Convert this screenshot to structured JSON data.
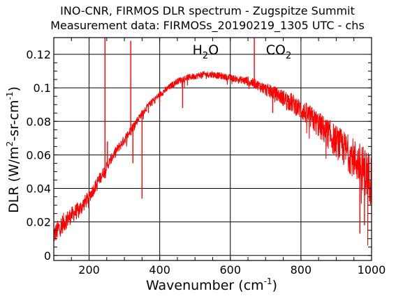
{
  "chart_data": {
    "type": "line",
    "title": "INO-CNR, FIRMOS DLR spectrum - Zugspitze Summit",
    "subtitle": "Measurement data: FIRMOSs_20190219_1305 UTC - chs",
    "xlabel": {
      "base": "Wavenumber (cm",
      "sup": "-1",
      "tail": ")"
    },
    "ylabel": {
      "p1": "DLR (W/m",
      "sup1": "2",
      "p2": "-sr-cm",
      "sup2": "-1",
      "p3": ")"
    },
    "xlim": [
      100,
      1000
    ],
    "ylim": [
      -0.003,
      0.13
    ],
    "x_ticks": [
      200,
      400,
      600,
      800,
      1000
    ],
    "x_tick_labels": [
      "200",
      "400",
      "600",
      "800",
      "1000"
    ],
    "y_ticks": [
      0,
      0.02,
      0.04,
      0.06,
      0.08,
      0.1,
      0.12
    ],
    "y_tick_labels": [
      "0",
      "0.02",
      "0.04",
      "0.06",
      "0.08",
      "0.1",
      "0.12"
    ],
    "grid": true,
    "line_color": "#ff0000",
    "annotations": [
      {
        "base": "H",
        "sub": "2",
        "tail": "O",
        "x": 530,
        "y": 0.123
      },
      {
        "base": "CO",
        "sub": "2",
        "tail": "",
        "x": 737,
        "y": 0.123
      }
    ],
    "series": [
      {
        "x": [
          100,
          125,
          150,
          175,
          200,
          225,
          250,
          275,
          300,
          325,
          350,
          375,
          400,
          425,
          450,
          475,
          500,
          525,
          550,
          575,
          600,
          625,
          650,
          675,
          700,
          725,
          750,
          775,
          800,
          825,
          850,
          875,
          900,
          925,
          950,
          975,
          1000
        ],
        "y": [
          0.012,
          0.019,
          0.024,
          0.028,
          0.035,
          0.044,
          0.053,
          0.062,
          0.069,
          0.077,
          0.085,
          0.091,
          0.096,
          0.1,
          0.104,
          0.106,
          0.107,
          0.108,
          0.108,
          0.107,
          0.106,
          0.105,
          0.104,
          0.102,
          0.099,
          0.097,
          0.094,
          0.091,
          0.087,
          0.083,
          0.078,
          0.073,
          0.068,
          0.063,
          0.058,
          0.052,
          0.045
        ],
        "noise": [
          0.006,
          0.006,
          0.005,
          0.005,
          0.004,
          0.004,
          0.003,
          0.003,
          0.003,
          0.003,
          0.002,
          0.002,
          0.002,
          0.002,
          0.002,
          0.002,
          0.002,
          0.002,
          0.002,
          0.002,
          0.002,
          0.002,
          0.003,
          0.003,
          0.004,
          0.004,
          0.005,
          0.006,
          0.006,
          0.007,
          0.008,
          0.009,
          0.01,
          0.011,
          0.012,
          0.014,
          0.016
        ],
        "spikes": [
          {
            "x": 245,
            "y": 0.13
          },
          {
            "x": 252,
            "y": 0.068
          },
          {
            "x": 318,
            "y": 0.128
          },
          {
            "x": 324,
            "y": 0.055
          },
          {
            "x": 350,
            "y": 0.034
          },
          {
            "x": 368,
            "y": 0.085
          },
          {
            "x": 465,
            "y": 0.088
          },
          {
            "x": 668,
            "y": 0.13
          },
          {
            "x": 720,
            "y": 0.085
          },
          {
            "x": 967,
            "y": 0.013
          },
          {
            "x": 980,
            "y": 0.018
          }
        ]
      }
    ]
  }
}
